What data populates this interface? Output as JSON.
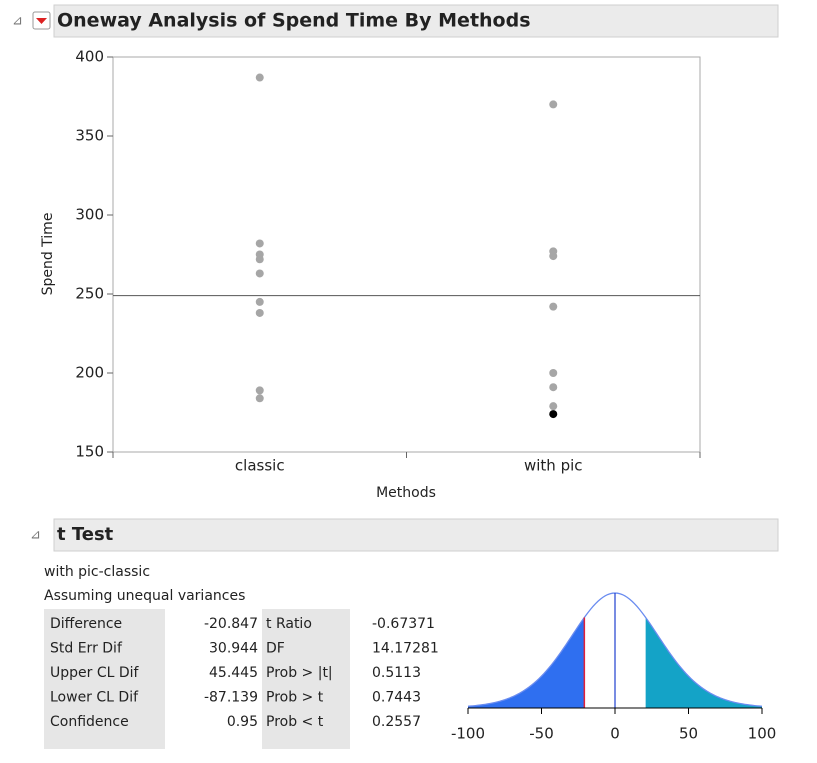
{
  "chart_data": {
    "type": "scatter",
    "title": "Oneway Analysis of Spend Time By Methods",
    "x_label": "Methods",
    "y_label": "Spend Time",
    "categories": [
      "classic",
      "with pic"
    ],
    "values": [
      [
        387,
        282,
        275,
        272,
        263,
        245,
        238,
        189,
        184
      ],
      [
        370,
        277,
        274,
        242,
        200,
        191,
        179,
        174
      ]
    ],
    "colors": [
      [
        "#a6a6a6",
        "#a6a6a6",
        "#a6a6a6",
        "#a6a6a6",
        "#a6a6a6",
        "#a6a6a6",
        "#a6a6a6",
        "#a6a6a6",
        "#a6a6a6"
      ],
      [
        "#a6a6a6",
        "#a6a6a6",
        "#a6a6a6",
        "#a6a6a6",
        "#a6a6a6",
        "#a6a6a6",
        "#a6a6a6",
        "#000000"
      ]
    ],
    "mean_line": 249,
    "ylim": [
      150,
      400
    ],
    "yticks": [
      150,
      200,
      250,
      300,
      350,
      400
    ]
  },
  "ttest": {
    "title": "t Test",
    "comparison": "with pic-classic",
    "assumption": "Assuming unequal variances",
    "rows": [
      [
        "Difference",
        -20.847,
        "t Ratio",
        -0.67371
      ],
      [
        "Std Err Dif",
        30.944,
        "DF",
        14.17281
      ],
      [
        "Upper CL Dif",
        45.445,
        "Prob > |t|",
        0.5113
      ],
      [
        "Lower CL Dif",
        -87.139,
        "Prob > t",
        0.7443
      ],
      [
        "Confidence",
        0.95,
        "Prob < t",
        0.2557
      ]
    ],
    "xlim": [
      -100,
      100
    ],
    "xticks": [
      -100,
      -50,
      0,
      50,
      100
    ]
  }
}
